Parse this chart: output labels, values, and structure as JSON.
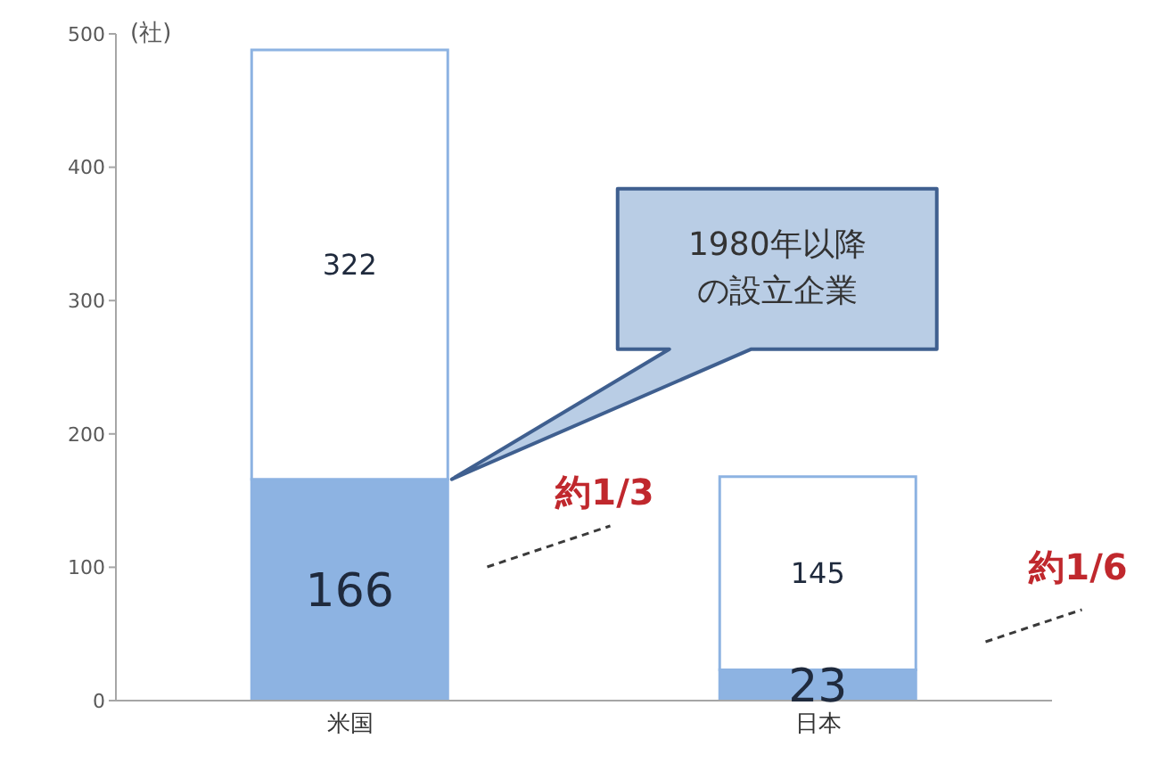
{
  "chart_data": {
    "type": "bar",
    "stacked": true,
    "ylabel": "(社)",
    "categories": [
      "米国",
      "日本"
    ],
    "series": [
      {
        "color": "#8db3e2",
        "values": [
          166,
          23
        ]
      },
      {
        "color": "#ffffff",
        "values": [
          322,
          145
        ]
      }
    ],
    "ylim": [
      0,
      500
    ],
    "yticks": [
      0,
      100,
      200,
      300,
      400,
      500
    ],
    "data_labels": true,
    "annotations": [
      "1980年以降の設立企業",
      "約1/3",
      "約1/6"
    ]
  }
}
